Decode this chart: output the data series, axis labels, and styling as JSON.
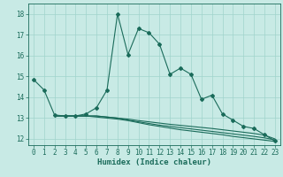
{
  "xlabel": "Humidex (Indice chaleur)",
  "xlim": [
    -0.5,
    23.5
  ],
  "ylim": [
    11.7,
    18.5
  ],
  "yticks": [
    12,
    13,
    14,
    15,
    16,
    17,
    18
  ],
  "xticks": [
    0,
    1,
    2,
    3,
    4,
    5,
    6,
    7,
    8,
    9,
    10,
    11,
    12,
    13,
    14,
    15,
    16,
    17,
    18,
    19,
    20,
    21,
    22,
    23
  ],
  "bg_color": "#c8eae5",
  "line_color": "#1a6b5a",
  "grid_color": "#a0d4cc",
  "curve1_x": [
    0,
    1,
    2,
    3,
    4,
    5,
    6,
    7,
    8,
    9,
    10,
    11,
    12,
    13,
    14,
    15,
    16,
    17,
    18,
    19,
    20,
    21,
    22,
    23
  ],
  "curve1_y": [
    14.85,
    14.35,
    13.15,
    13.1,
    13.1,
    13.2,
    13.5,
    14.35,
    18.0,
    16.05,
    17.3,
    17.1,
    16.55,
    15.1,
    15.4,
    15.1,
    13.9,
    14.1,
    13.2,
    12.9,
    12.6,
    12.5,
    12.2,
    11.9
  ],
  "curve2_x": [
    2,
    3,
    4,
    5,
    6,
    7,
    8,
    9,
    10,
    11,
    12,
    13,
    14,
    15,
    16,
    17,
    18,
    19,
    20,
    21,
    22,
    23
  ],
  "curve2_y": [
    13.1,
    13.1,
    13.1,
    13.1,
    13.1,
    13.05,
    13.0,
    12.95,
    12.88,
    12.82,
    12.76,
    12.7,
    12.65,
    12.6,
    12.55,
    12.5,
    12.44,
    12.38,
    12.32,
    12.26,
    12.18,
    12.0
  ],
  "curve3_x": [
    2,
    3,
    4,
    5,
    6,
    7,
    8,
    9,
    10,
    11,
    12,
    13,
    14,
    15,
    16,
    17,
    18,
    19,
    20,
    21,
    22,
    23
  ],
  "curve3_y": [
    13.1,
    13.1,
    13.1,
    13.1,
    13.1,
    13.05,
    13.0,
    12.9,
    12.82,
    12.74,
    12.66,
    12.6,
    12.54,
    12.48,
    12.42,
    12.36,
    12.3,
    12.24,
    12.18,
    12.12,
    12.05,
    11.95
  ],
  "curve4_x": [
    2,
    3,
    4,
    5,
    6,
    7,
    8,
    9,
    10,
    11,
    12,
    13,
    14,
    15,
    16,
    17,
    18,
    19,
    20,
    21,
    22,
    23
  ],
  "curve4_y": [
    13.1,
    13.1,
    13.1,
    13.1,
    13.05,
    13.0,
    12.95,
    12.88,
    12.78,
    12.68,
    12.6,
    12.52,
    12.44,
    12.38,
    12.32,
    12.26,
    12.2,
    12.12,
    12.06,
    12.0,
    11.94,
    11.88
  ]
}
